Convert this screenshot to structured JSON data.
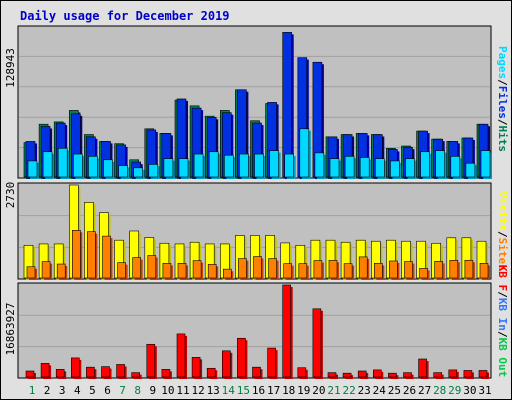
{
  "title": "Daily usage for December 2019",
  "colors": {
    "hits": "#00d8ff",
    "files": "#0030e0",
    "pages": "#008050",
    "visits": "#ffff00",
    "sites": "#ff8000",
    "kbytes": "#ff0000",
    "in": "#3377ff",
    "out": "#00cc44",
    "weekday_label": "#000000",
    "weekend_label": "#008040",
    "plot_bg": "#c0c0c0",
    "title": "#0000cc"
  },
  "chart_data": [
    {
      "type": "bar",
      "panel": "top",
      "y_max_label": "128943",
      "ylim": [
        0,
        128943
      ],
      "right_labels": [
        "Pages",
        "/",
        "Files",
        "/",
        "Hits"
      ],
      "categories": [
        "1",
        "2",
        "3",
        "4",
        "5",
        "6",
        "7",
        "8",
        "9",
        "10",
        "11",
        "12",
        "13",
        "14",
        "15",
        "16",
        "17",
        "18",
        "19",
        "20",
        "21",
        "22",
        "23",
        "24",
        "25",
        "26",
        "27",
        "28",
        "29",
        "30",
        "31"
      ],
      "series": [
        {
          "name": "Pages",
          "values": [
            30000,
            46000,
            48000,
            58000,
            37000,
            31000,
            29000,
            15000,
            42000,
            38000,
            67000,
            62000,
            53000,
            58000,
            76000,
            49000,
            64000,
            0,
            0,
            0,
            35000,
            37000,
            38000,
            37000,
            25000,
            27000,
            40000,
            33000,
            31000,
            34000,
            46000
          ]
        },
        {
          "name": "Files",
          "values": [
            31000,
            44000,
            47000,
            55000,
            35000,
            31000,
            28000,
            13000,
            41000,
            38000,
            68000,
            60000,
            52000,
            56000,
            76000,
            47000,
            65000,
            126000,
            104000,
            100000,
            35000,
            37000,
            38000,
            37000,
            24000,
            26000,
            40000,
            33000,
            31000,
            34000,
            46000
          ]
        },
        {
          "name": "Hits",
          "values": [
            14000,
            22000,
            25000,
            20000,
            18000,
            15000,
            10000,
            8000,
            11000,
            16000,
            16000,
            20000,
            22000,
            19000,
            20000,
            20000,
            23000,
            20000,
            42000,
            21000,
            16000,
            18000,
            17000,
            16000,
            14000,
            16000,
            22000,
            23000,
            18000,
            12000,
            23000
          ]
        }
      ]
    },
    {
      "type": "bar",
      "panel": "middle",
      "y_max_label": "2730",
      "ylim": [
        0,
        2730
      ],
      "right_labels": [
        "Visits",
        "/",
        "Sites"
      ],
      "categories": [
        "1",
        "2",
        "3",
        "4",
        "5",
        "6",
        "7",
        "8",
        "9",
        "10",
        "11",
        "12",
        "13",
        "14",
        "15",
        "16",
        "17",
        "18",
        "19",
        "20",
        "21",
        "22",
        "23",
        "24",
        "25",
        "26",
        "27",
        "28",
        "29",
        "30",
        "31"
      ],
      "series": [
        {
          "name": "Visits",
          "values": [
            960,
            1000,
            1000,
            2730,
            2220,
            1920,
            1110,
            1380,
            1190,
            1020,
            1000,
            1050,
            1000,
            1000,
            1250,
            1250,
            1250,
            1030,
            960,
            1110,
            1110,
            1050,
            1110,
            1080,
            1110,
            1080,
            1080,
            1020,
            1180,
            1180,
            1080
          ]
        },
        {
          "name": "Sites",
          "values": [
            330,
            480,
            410,
            1400,
            1360,
            1230,
            450,
            600,
            660,
            430,
            430,
            510,
            400,
            260,
            570,
            630,
            570,
            420,
            420,
            510,
            520,
            420,
            620,
            430,
            500,
            480,
            280,
            490,
            520,
            520,
            430
          ]
        }
      ]
    },
    {
      "type": "bar",
      "panel": "bottom",
      "y_max_label": "16863927",
      "ylim": [
        0,
        16863927
      ],
      "right_labels": [
        "KB F",
        "/",
        "KB In",
        "/",
        "KB Out"
      ],
      "categories": [
        "1",
        "2",
        "3",
        "4",
        "5",
        "6",
        "7",
        "8",
        "9",
        "10",
        "11",
        "12",
        "13",
        "14",
        "15",
        "16",
        "17",
        "18",
        "19",
        "20",
        "21",
        "22",
        "23",
        "24",
        "25",
        "26",
        "27",
        "28",
        "29",
        "30",
        "31"
      ],
      "series": [
        {
          "name": "KB F",
          "values": [
            1100000,
            2500000,
            1400000,
            3500000,
            1800000,
            1900000,
            2300000,
            800000,
            6000000,
            1400000,
            7900000,
            3600000,
            1600000,
            4800000,
            7100000,
            1800000,
            5300000,
            16863927,
            1700000,
            12500000,
            800000,
            700000,
            1100000,
            1300000,
            700000,
            800000,
            3300000,
            800000,
            1300000,
            1200000,
            1200000
          ]
        }
      ]
    }
  ],
  "x_labels": [
    "1",
    "2",
    "3",
    "4",
    "5",
    "6",
    "7",
    "8",
    "9",
    "10",
    "11",
    "12",
    "13",
    "14",
    "15",
    "16",
    "17",
    "18",
    "19",
    "20",
    "21",
    "22",
    "23",
    "24",
    "25",
    "26",
    "27",
    "28",
    "29",
    "30",
    "31"
  ],
  "weekend_days": [
    "1",
    "7",
    "8",
    "14",
    "15",
    "21",
    "22",
    "28",
    "29"
  ]
}
